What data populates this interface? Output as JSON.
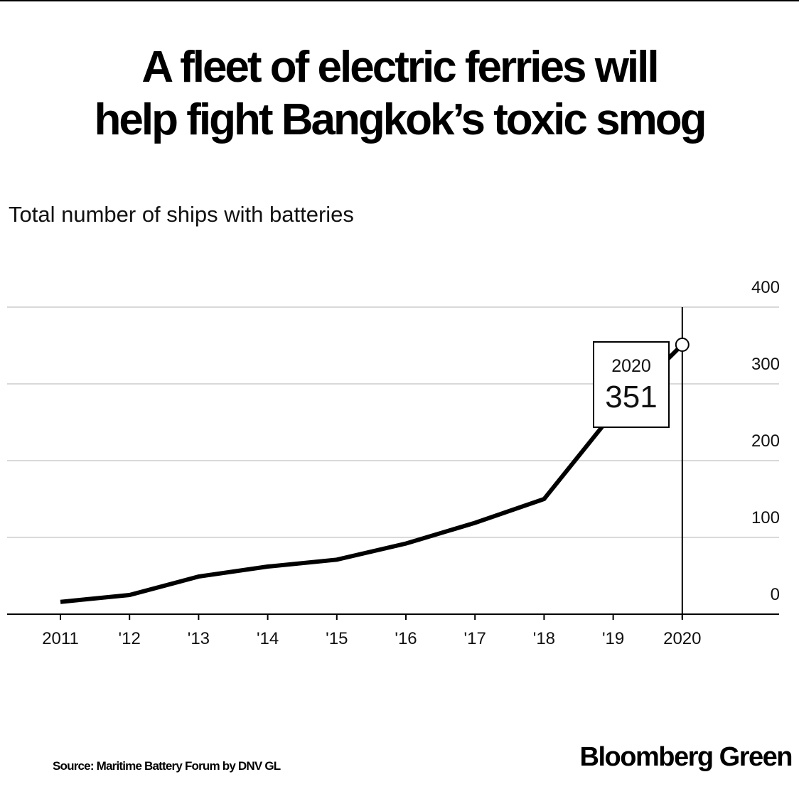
{
  "headline": {
    "line1": "A fleet of electric ferries will",
    "line2": "help fight Bangkok’s toxic smog"
  },
  "chart_data": {
    "type": "line",
    "title": "A fleet of electric ferries will help fight Bangkok’s toxic smog",
    "subtitle": "Total number of ships with batteries",
    "x": [
      2011,
      2012,
      2013,
      2014,
      2015,
      2016,
      2017,
      2018,
      2019,
      2020
    ],
    "x_tick_labels": [
      "2011",
      "'12",
      "'13",
      "'14",
      "'15",
      "'16",
      "'17",
      "'18",
      "'19",
      "2020"
    ],
    "series": [
      {
        "values": [
          16,
          25,
          49,
          62,
          71,
          92,
          119,
          150,
          262,
          351
        ]
      }
    ],
    "y_ticks": [
      0,
      100,
      200,
      300,
      400
    ],
    "y_tick_labels": [
      "0",
      "100",
      "200",
      "300",
      "400"
    ],
    "ylim": [
      0,
      400
    ],
    "yaxis_side": "right",
    "grid": true,
    "annotation": {
      "x": 2020,
      "year_label": "2020",
      "value_label": "351"
    },
    "line_color": "#000000",
    "grid_color": "#d9d9d9"
  },
  "footer": {
    "source": "Source: Maritime Battery Forum by DNV GL",
    "brand": "Bloomberg Green"
  }
}
